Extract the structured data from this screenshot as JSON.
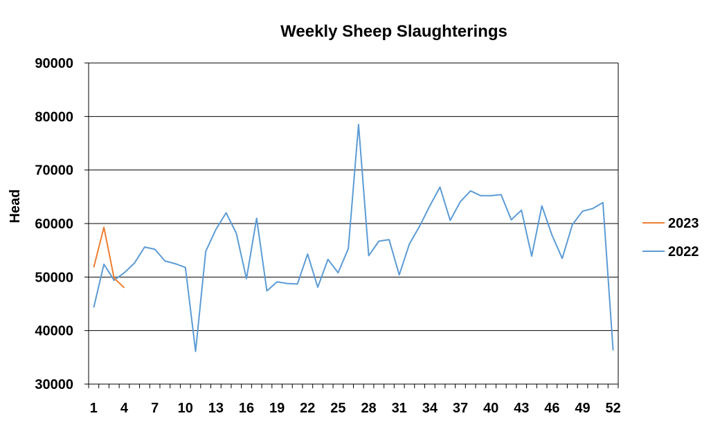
{
  "chart_data": {
    "type": "line",
    "title": "Weekly Sheep Slaughterings",
    "xlabel": "",
    "ylabel": "Head",
    "ylim": [
      30000,
      90000
    ],
    "yticks": [
      30000,
      40000,
      50000,
      60000,
      70000,
      80000,
      90000
    ],
    "xlim": [
      1,
      53
    ],
    "xticks": [
      1,
      4,
      7,
      10,
      13,
      16,
      19,
      22,
      25,
      28,
      31,
      34,
      37,
      40,
      43,
      46,
      49,
      52
    ],
    "grid": "horizontal",
    "legend_position": "right",
    "series": [
      {
        "name": "2023",
        "color": "#ed7d31",
        "x": [
          1,
          2,
          3,
          4
        ],
        "values": [
          51800,
          59300,
          49800,
          48000
        ]
      },
      {
        "name": "2022",
        "color": "#5b9bd5",
        "x": [
          1,
          2,
          3,
          4,
          5,
          6,
          7,
          8,
          9,
          10,
          11,
          12,
          13,
          14,
          15,
          16,
          17,
          18,
          19,
          20,
          21,
          22,
          23,
          24,
          25,
          26,
          27,
          28,
          29,
          30,
          31,
          32,
          33,
          34,
          35,
          36,
          37,
          38,
          39,
          40,
          41,
          42,
          43,
          44,
          45,
          46,
          47,
          48,
          49,
          50,
          51,
          52
        ],
        "values": [
          44300,
          52400,
          49400,
          50800,
          52600,
          55600,
          55200,
          53000,
          52500,
          51800,
          36100,
          54800,
          58900,
          62000,
          58200,
          49700,
          61000,
          47400,
          49100,
          48800,
          48700,
          54300,
          48100,
          53300,
          50800,
          55300,
          78500,
          54000,
          56700,
          57000,
          50400,
          56200,
          59500,
          63300,
          66800,
          60600,
          64100,
          66100,
          65200,
          65200,
          65400,
          60700,
          62500,
          53900,
          63300,
          57800,
          53500,
          59800,
          62300,
          62800,
          63900,
          36300
        ]
      }
    ]
  }
}
